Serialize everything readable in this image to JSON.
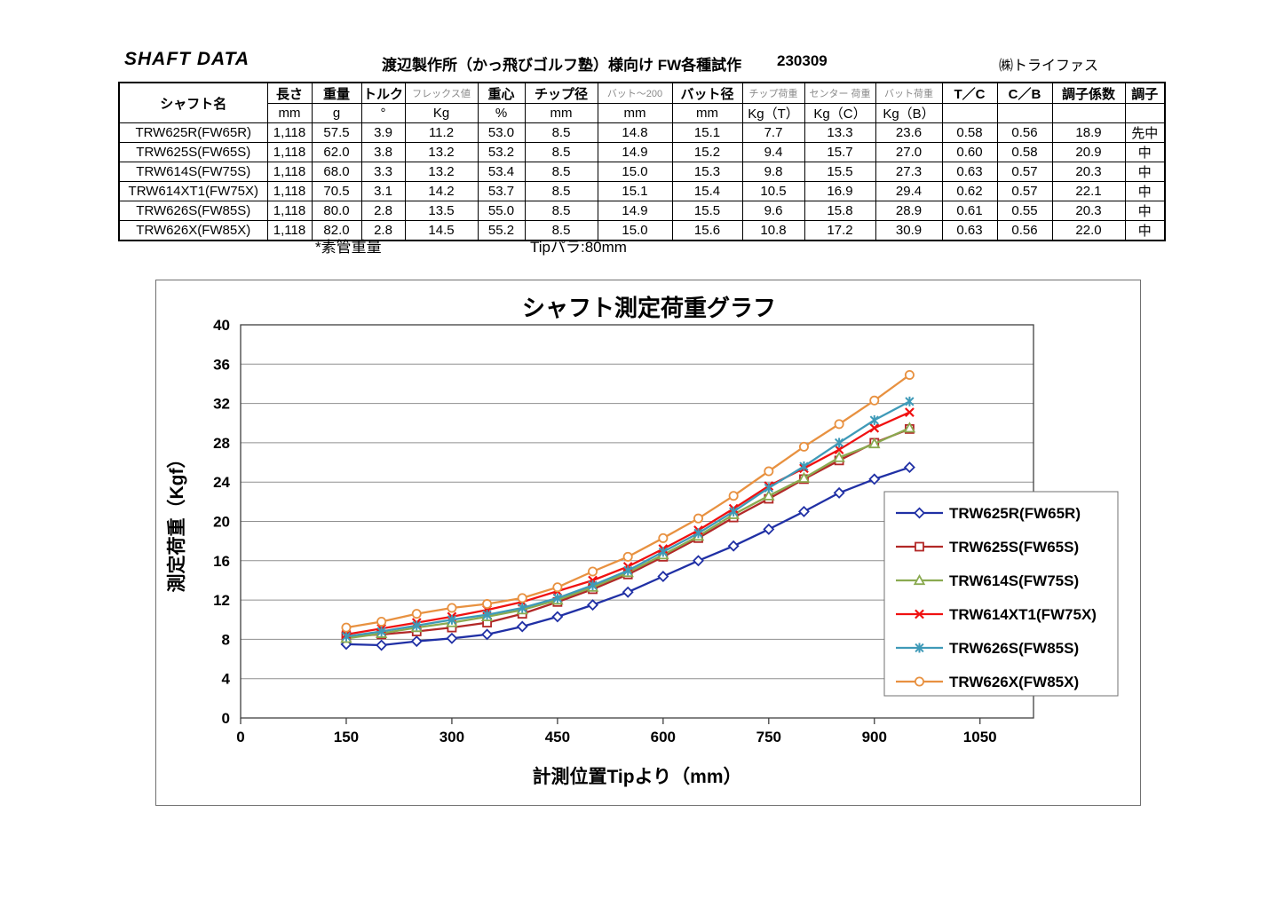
{
  "header": {
    "brand": "SHAFT DATA",
    "title": "渡辺製作所（かっ飛びゴルフ塾）様向け FW各種試作",
    "date": "230309",
    "company": "㈱トライファス"
  },
  "table": {
    "name_header": "シャフト名",
    "columns": [
      {
        "label": "長さ",
        "unit": "mm",
        "small": false
      },
      {
        "label": "重量",
        "unit": "g",
        "small": false
      },
      {
        "label": "トルク",
        "unit": "°",
        "small": false
      },
      {
        "label": "フレックス値",
        "unit": "Kg",
        "small": true
      },
      {
        "label": "重心",
        "unit": "%",
        "small": false
      },
      {
        "label": "チップ径",
        "unit": "mm",
        "small": false
      },
      {
        "label": "バット～200",
        "unit": "mm",
        "small": true
      },
      {
        "label": "バット径",
        "unit": "mm",
        "small": false
      },
      {
        "label": "チップ荷重",
        "unit": "Kg（T）",
        "small": true
      },
      {
        "label": "センター 荷重",
        "unit": "Kg（C）",
        "small": true
      },
      {
        "label": "バット荷重",
        "unit": "Kg（B）",
        "small": true
      },
      {
        "label": "T／C",
        "unit": "",
        "small": false
      },
      {
        "label": "C／B",
        "unit": "",
        "small": false
      },
      {
        "label": "調子係数",
        "unit": "",
        "small": false
      },
      {
        "label": "調子",
        "unit": "",
        "small": false
      }
    ],
    "rows": [
      {
        "name": "TRW625R(FW65R)",
        "values": [
          "1,118",
          "57.5",
          "3.9",
          "11.2",
          "53.0",
          "8.5",
          "14.8",
          "15.1",
          "7.7",
          "13.3",
          "23.6",
          "0.58",
          "0.56",
          "18.9",
          "先中"
        ]
      },
      {
        "name": "TRW625S(FW65S)",
        "values": [
          "1,118",
          "62.0",
          "3.8",
          "13.2",
          "53.2",
          "8.5",
          "14.9",
          "15.2",
          "9.4",
          "15.7",
          "27.0",
          "0.60",
          "0.58",
          "20.9",
          "中"
        ]
      },
      {
        "name": "TRW614S(FW75S)",
        "values": [
          "1,118",
          "68.0",
          "3.3",
          "13.2",
          "53.4",
          "8.5",
          "15.0",
          "15.3",
          "9.8",
          "15.5",
          "27.3",
          "0.63",
          "0.57",
          "20.3",
          "中"
        ]
      },
      {
        "name": "TRW614XT1(FW75X)",
        "values": [
          "1,118",
          "70.5",
          "3.1",
          "14.2",
          "53.7",
          "8.5",
          "15.1",
          "15.4",
          "10.5",
          "16.9",
          "29.4",
          "0.62",
          "0.57",
          "22.1",
          "中"
        ]
      },
      {
        "name": "TRW626S(FW85S)",
        "values": [
          "1,118",
          "80.0",
          "2.8",
          "13.5",
          "55.0",
          "8.5",
          "14.9",
          "15.5",
          "9.6",
          "15.8",
          "28.9",
          "0.61",
          "0.55",
          "20.3",
          "中"
        ]
      },
      {
        "name": "TRW626X(FW85X)",
        "values": [
          "1,118",
          "82.0",
          "2.8",
          "14.5",
          "55.2",
          "8.5",
          "15.0",
          "15.6",
          "10.8",
          "17.2",
          "30.9",
          "0.63",
          "0.56",
          "22.0",
          "中"
        ]
      }
    ],
    "footnotes": {
      "weight_note": "*素管重量",
      "tip_note": "Tipパラ:80mm"
    }
  },
  "chart_data": {
    "type": "line",
    "title": "シャフト測定荷重グラフ",
    "xlabel": "計測位置Tipより（mm）",
    "ylabel": "測定荷重（Kgf）",
    "xlim": [
      0,
      1126
    ],
    "ylim": [
      0,
      40
    ],
    "x_ticks": [
      0,
      150,
      300,
      450,
      600,
      750,
      900,
      1050
    ],
    "y_ticks": [
      0,
      4,
      8,
      12,
      16,
      20,
      24,
      28,
      32,
      36,
      40
    ],
    "grid": "horizontal",
    "legend_position": "inside-right",
    "x": [
      150,
      200,
      250,
      300,
      350,
      400,
      450,
      500,
      550,
      600,
      650,
      700,
      750,
      800,
      850,
      900,
      950
    ],
    "series": [
      {
        "name": "TRW625R(FW65R)",
        "color": "#2030A5",
        "marker": "diamond",
        "values": [
          7.5,
          7.4,
          7.8,
          8.1,
          8.5,
          9.3,
          10.3,
          11.5,
          12.8,
          14.4,
          16.0,
          17.5,
          19.2,
          21.0,
          22.9,
          24.3,
          25.5
        ]
      },
      {
        "name": "TRW625S(FW65S)",
        "color": "#B22827",
        "marker": "square",
        "values": [
          8.3,
          8.5,
          8.8,
          9.2,
          9.7,
          10.6,
          11.8,
          13.1,
          14.6,
          16.4,
          18.3,
          20.4,
          22.3,
          24.3,
          26.2,
          28.0,
          29.4
        ]
      },
      {
        "name": "TRW614S(FW75S)",
        "color": "#8AAA50",
        "marker": "triangle",
        "values": [
          8.1,
          8.6,
          9.2,
          9.7,
          10.3,
          11.0,
          12.0,
          13.3,
          14.8,
          16.6,
          18.5,
          20.7,
          22.6,
          24.4,
          26.5,
          27.9,
          29.5
        ]
      },
      {
        "name": "TRW614XT1(FW75X)",
        "color": "#F01111",
        "marker": "x",
        "values": [
          8.5,
          9.1,
          9.7,
          10.3,
          11.0,
          11.8,
          12.9,
          14.0,
          15.4,
          17.2,
          19.1,
          21.3,
          23.6,
          25.4,
          27.3,
          29.5,
          31.1
        ]
      },
      {
        "name": "TRW626S(FW85S)",
        "color": "#3F9AB8",
        "marker": "star",
        "values": [
          8.3,
          8.8,
          9.4,
          10.0,
          10.5,
          11.2,
          12.2,
          13.5,
          15.0,
          16.9,
          18.8,
          21.0,
          23.4,
          25.6,
          28.0,
          30.3,
          32.2
        ]
      },
      {
        "name": "TRW626X(FW85X)",
        "color": "#E89140",
        "marker": "circle",
        "values": [
          9.2,
          9.8,
          10.6,
          11.2,
          11.6,
          12.2,
          13.3,
          14.9,
          16.4,
          18.3,
          20.3,
          22.6,
          25.1,
          27.6,
          29.9,
          32.3,
          34.9
        ]
      }
    ]
  }
}
